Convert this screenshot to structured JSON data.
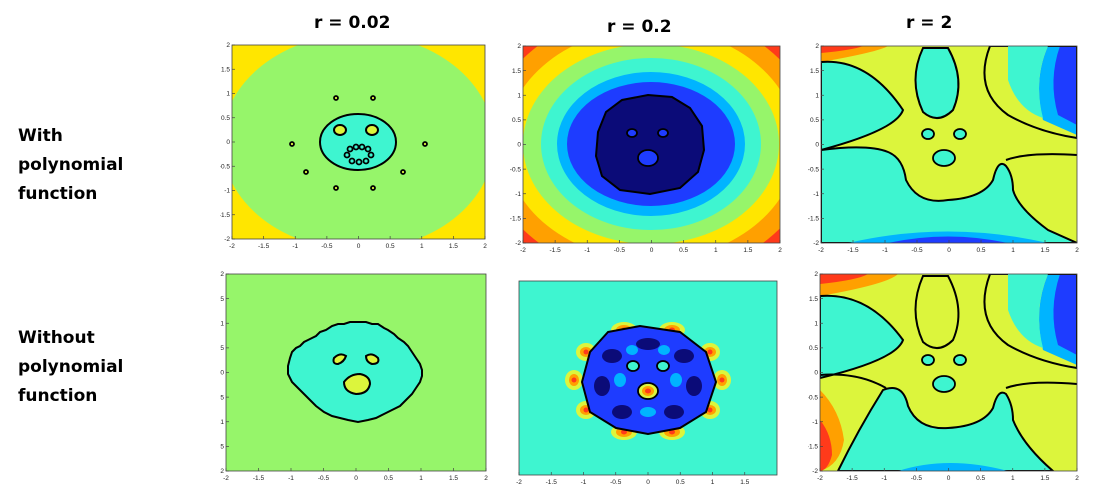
{
  "columns": [
    "r = 0.02",
    "r = 0.2",
    "r = 2"
  ],
  "rows": [
    [
      "With",
      "polynomial",
      "function"
    ],
    [
      "Without",
      "polynomial",
      "function"
    ]
  ],
  "colors": {
    "navy": "#0b0b78",
    "blue": "#1e3cff",
    "sky": "#00b4ff",
    "cyan": "#3ef5d0",
    "green": "#96f56a",
    "lime": "#dcf53c",
    "yellow": "#ffe600",
    "orange": "#ffa000",
    "red": "#ff3a1a",
    "darkred": "#8c0a0a",
    "contour": "#000000"
  },
  "chart_data": [
    {
      "type": "heatmap",
      "row": "With polynomial function",
      "column": "r = 0.02",
      "xlim": [
        -2,
        2
      ],
      "ylim": [
        -2,
        2
      ],
      "xticks": [
        "-2",
        "-1.5",
        "-1",
        "-0.5",
        "0",
        "0.5",
        "1",
        "1.5",
        "2"
      ],
      "yticks": [
        "2",
        "1.5",
        "1",
        "0.5",
        "0",
        "-0.5",
        "-1",
        "-1.5",
        "-2"
      ]
    },
    {
      "type": "heatmap",
      "row": "With polynomial function",
      "column": "r = 0.2",
      "xlim": [
        -2,
        2
      ],
      "ylim": [
        -2,
        2
      ],
      "xticks": [
        "-2",
        "-1.5",
        "-1",
        "-0.5",
        "0",
        "0.5",
        "1",
        "1.5",
        "2"
      ],
      "yticks": [
        "2",
        "1.5",
        "1",
        "0.5",
        "0",
        "-0.5",
        "-1",
        "-1.5",
        "-2"
      ]
    },
    {
      "type": "heatmap",
      "row": "With polynomial function",
      "column": "r = 2",
      "xlim": [
        -2,
        2
      ],
      "ylim": [
        -2,
        2
      ],
      "xticks": [
        "-2",
        "-1.5",
        "-1",
        "-0.5",
        "0",
        "0.5",
        "1",
        "1.5",
        "2"
      ],
      "yticks": [
        "2",
        "1.5",
        "1",
        "0.5",
        "0",
        "-0.5",
        "-1",
        "-1.5",
        "-2"
      ]
    },
    {
      "type": "heatmap",
      "row": "Without polynomial function",
      "column": "r = 0.02",
      "xlim": [
        -2,
        2
      ],
      "ylim": [
        -2,
        2
      ],
      "xticks": [
        "-2",
        "-1.5",
        "-1",
        "-0.5",
        "0",
        "0.5",
        "1",
        "1.5",
        "2"
      ],
      "yticks": [
        "2",
        "1.5",
        "1",
        "0.5",
        "0",
        "-0.5",
        "-1",
        "-1.5",
        "-2"
      ]
    },
    {
      "type": "heatmap",
      "row": "Without polynomial function",
      "column": "r = 0.2",
      "xlim": [
        -2,
        2
      ],
      "ylim": [
        -2,
        2
      ],
      "xticks": [
        "-2",
        "-1.5",
        "-1",
        "-0.5",
        "0",
        "0.5",
        "1",
        "1.5"
      ],
      "yticks": []
    },
    {
      "type": "heatmap",
      "row": "Without polynomial function",
      "column": "r = 2",
      "xlim": [
        -2,
        2
      ],
      "ylim": [
        -2,
        2
      ],
      "xticks": [
        "-2",
        "-1.5",
        "-1",
        "-0.5",
        "0",
        "0.5",
        "1",
        "1.5",
        "2"
      ],
      "yticks": [
        "2",
        "1.5",
        "1",
        "0.5",
        "0",
        "-0.5",
        "-1",
        "-1.5",
        "-2"
      ]
    }
  ]
}
